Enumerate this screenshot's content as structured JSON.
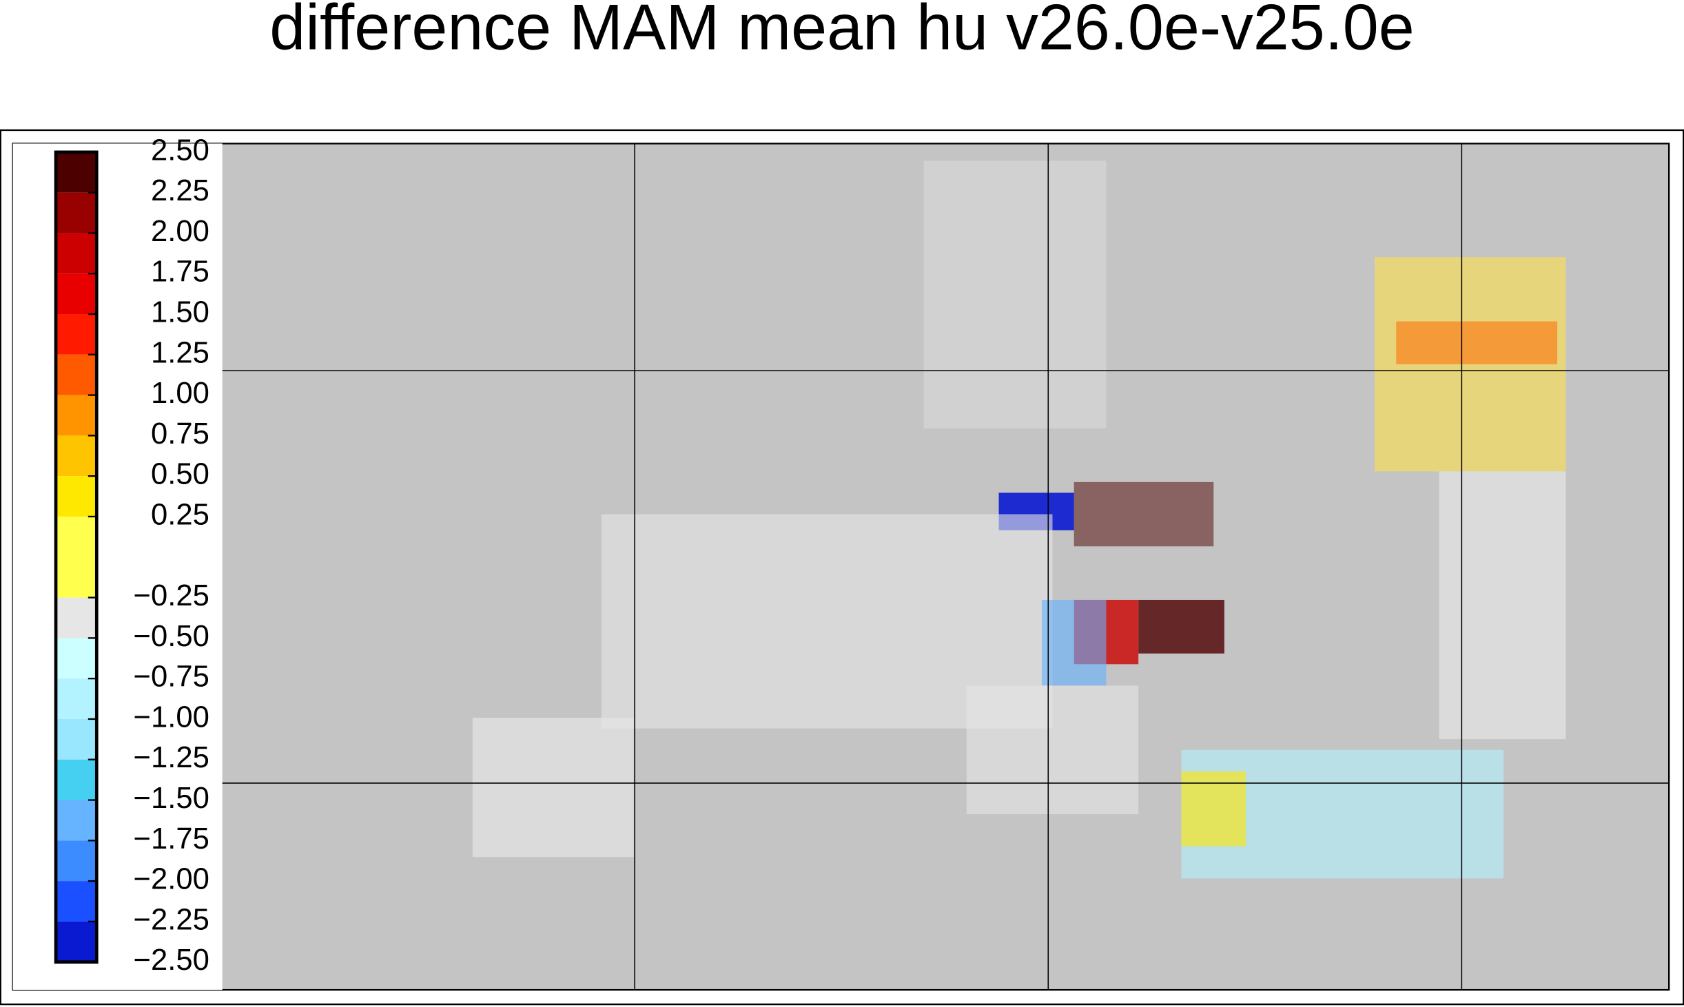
{
  "title": "difference MAM mean hu v26.0e-v25.0e",
  "colorbar": {
    "ticks": [
      {
        "value": 2.5,
        "label": "2.50"
      },
      {
        "value": 2.25,
        "label": "2.25"
      },
      {
        "value": 2.0,
        "label": "2.00"
      },
      {
        "value": 1.75,
        "label": "1.75"
      },
      {
        "value": 1.5,
        "label": "1.50"
      },
      {
        "value": 1.25,
        "label": "1.25"
      },
      {
        "value": 1.0,
        "label": "1.00"
      },
      {
        "value": 0.75,
        "label": "0.75"
      },
      {
        "value": 0.5,
        "label": "0.50"
      },
      {
        "value": 0.25,
        "label": "0.25"
      },
      {
        "value": -0.25,
        "label": "−0.25"
      },
      {
        "value": -0.5,
        "label": "−0.50"
      },
      {
        "value": -0.75,
        "label": "−0.75"
      },
      {
        "value": -1.0,
        "label": "−1.00"
      },
      {
        "value": -1.25,
        "label": "−1.25"
      },
      {
        "value": -1.5,
        "label": "−1.50"
      },
      {
        "value": -1.75,
        "label": "−1.75"
      },
      {
        "value": -2.0,
        "label": "−2.00"
      },
      {
        "value": -2.25,
        "label": "−2.25"
      },
      {
        "value": -2.5,
        "label": "−2.50"
      }
    ],
    "colors": [
      "#4d0000",
      "#990000",
      "#cc0000",
      "#e80000",
      "#ff1a00",
      "#ff5a00",
      "#ff9400",
      "#ffc400",
      "#ffe800",
      "#ffff4d",
      "#e6e6e6",
      "#ccffff",
      "#b3f2ff",
      "#99e6ff",
      "#45d0f2",
      "#66b3ff",
      "#3d8cff",
      "#1a50ff",
      "#0a1ad0",
      "#000066"
    ]
  }
}
